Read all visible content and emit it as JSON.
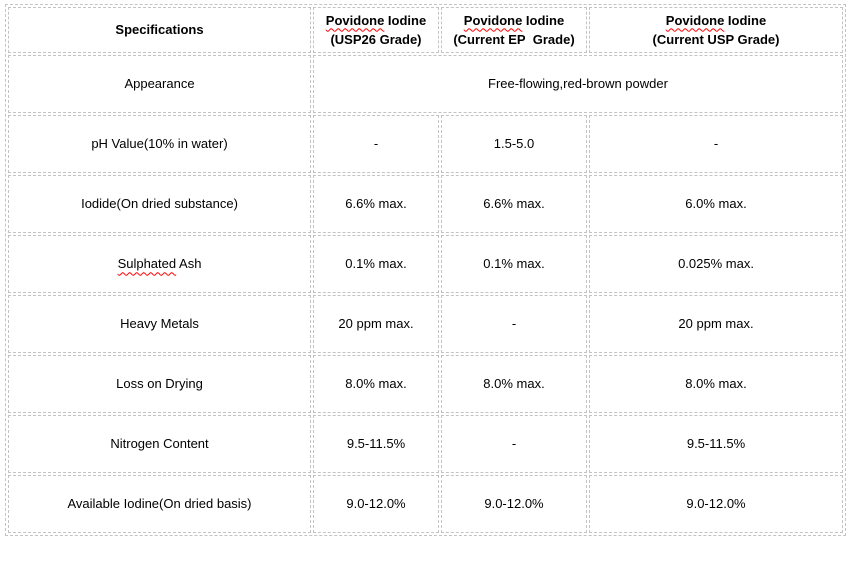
{
  "table": {
    "header": {
      "spec_label": "Specifications",
      "products": [
        {
          "name_misspelled": "Povidone",
          "name_rest": " Iodine",
          "grade": "(USP26 Grade)"
        },
        {
          "name_misspelled": "Povidone",
          "name_rest": " Iodine",
          "grade": "(Current EP  Grade)"
        },
        {
          "name_misspelled": "Povidone",
          "name_rest": " Iodine",
          "grade": "(Current USP Grade)"
        }
      ]
    },
    "appearance_row": {
      "spec": "Appearance",
      "value": "Free-flowing,red-brown powder"
    },
    "rows": [
      {
        "spec": "pH Value(10% in water)",
        "values": [
          "-",
          "1.5-5.0",
          "-"
        ]
      },
      {
        "spec": "Iodide(On dried substance)",
        "values": [
          "6.6% max.",
          "6.6% max.",
          "6.0% max."
        ]
      },
      {
        "spec_misspelled": "Sulphated",
        "spec_rest": " Ash",
        "values": [
          "0.1% max.",
          "0.1% max.",
          "0.025% max."
        ]
      },
      {
        "spec": "Heavy Metals",
        "values": [
          "20 ppm max.",
          "-",
          "20 ppm max."
        ]
      },
      {
        "spec": "Loss on Drying",
        "values": [
          "8.0% max.",
          "8.0% max.",
          "8.0% max."
        ]
      },
      {
        "spec": "Nitrogen Content",
        "values": [
          "9.5-11.5%",
          "-",
          "9.5-11.5%"
        ]
      },
      {
        "spec": "Available Iodine(On dried basis)",
        "values": [
          "9.0-12.0%",
          "9.0-12.0%",
          "9.0-12.0%"
        ]
      }
    ],
    "colors": {
      "border": "#c3c3c3",
      "text": "#000000",
      "squiggle": "#ff0000"
    }
  }
}
